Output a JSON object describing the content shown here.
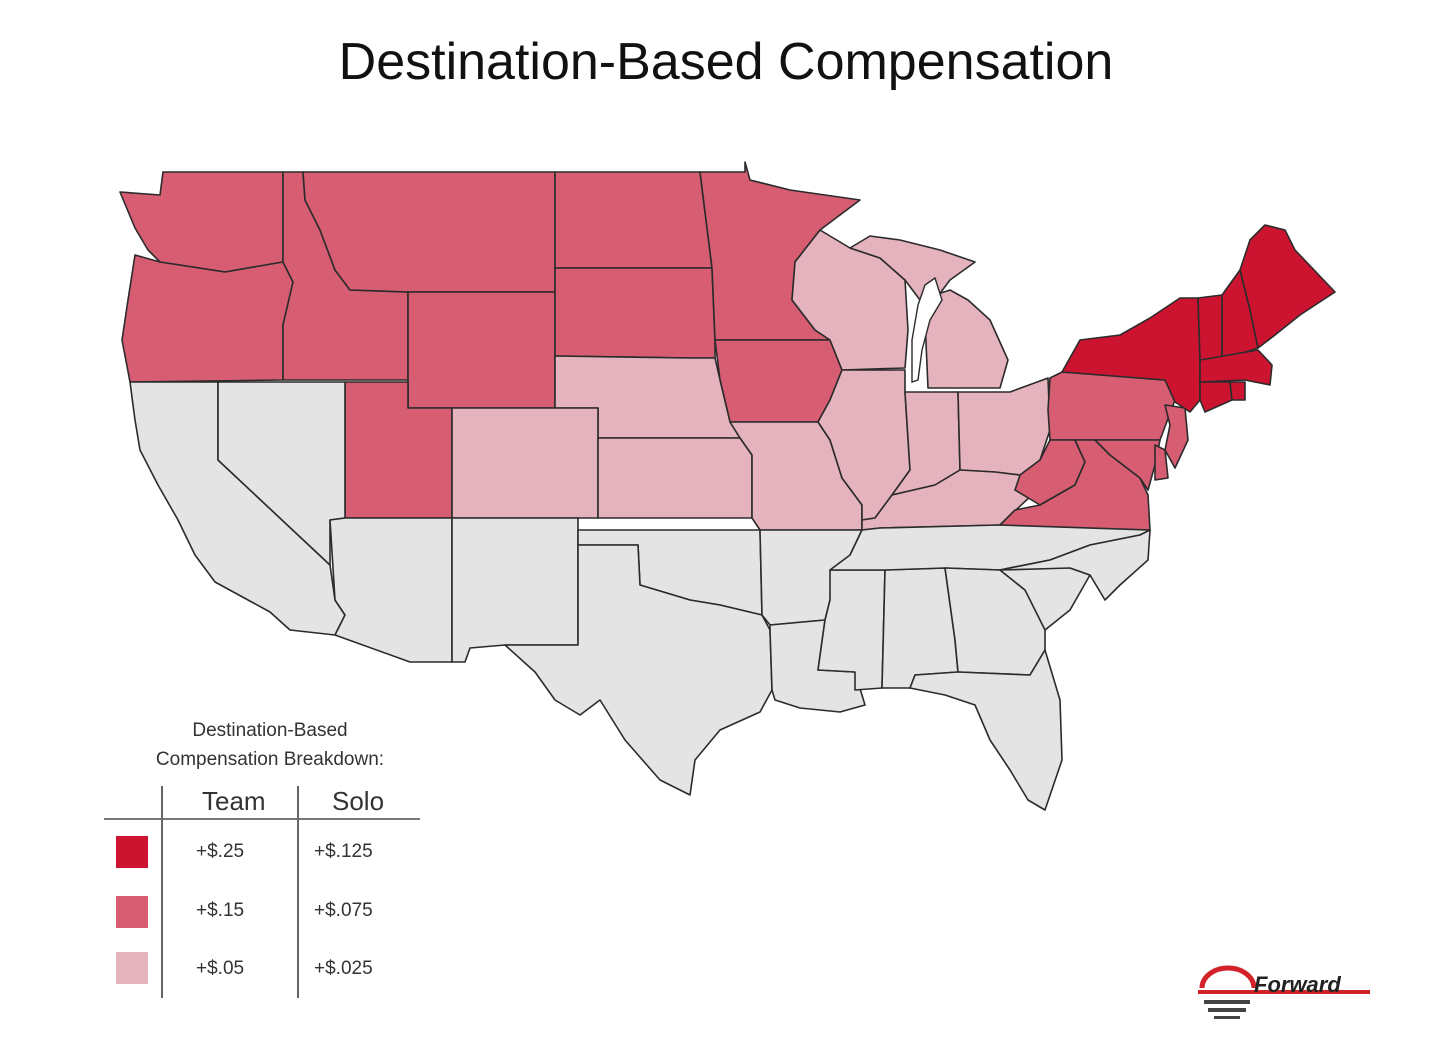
{
  "title": "Destination-Based Compensation",
  "colors": {
    "tier_high": "#cc1430",
    "tier_mid": "#d75d73",
    "tier_low": "#e5b3bd",
    "none": "#e4e4e4",
    "logo_red": "#d2232a"
  },
  "legend": {
    "title_line1": "Destination-Based",
    "title_line2": "Compensation Breakdown:",
    "headers": {
      "team": "Team",
      "solo": "Solo"
    },
    "rows": [
      {
        "tier": "high",
        "team": "+$.25",
        "solo": "+$.125"
      },
      {
        "tier": "mid",
        "team": "+$.15",
        "solo": "+$.075"
      },
      {
        "tier": "low",
        "team": "+$.05",
        "solo": "+$.025"
      }
    ]
  },
  "states": {
    "WA": "mid",
    "OR": "mid",
    "ID": "mid",
    "MT": "mid",
    "WY": "mid",
    "UT": "mid",
    "ND": "mid",
    "SD": "mid",
    "MN": "mid",
    "IA": "mid",
    "PA": "mid",
    "WV": "mid",
    "VA": "mid",
    "MD": "mid",
    "DE": "mid",
    "NJ": "mid",
    "NE": "low",
    "CO": "low",
    "KS": "low",
    "MO": "low",
    "WI": "low",
    "MI": "low",
    "IL": "low",
    "IN": "low",
    "OH": "low",
    "KY": "low",
    "NY": "high",
    "ME": "high",
    "VT": "high",
    "NH": "high",
    "MA": "high",
    "CT": "high",
    "RI": "high",
    "CA": "none",
    "NV": "none",
    "AZ": "none",
    "NM": "none",
    "TX": "none",
    "OK": "none",
    "AR": "none",
    "LA": "none",
    "MS": "none",
    "AL": "none",
    "TN": "none",
    "GA": "none",
    "FL": "none",
    "SC": "none",
    "NC": "none"
  },
  "logo": {
    "text": "Forward"
  }
}
